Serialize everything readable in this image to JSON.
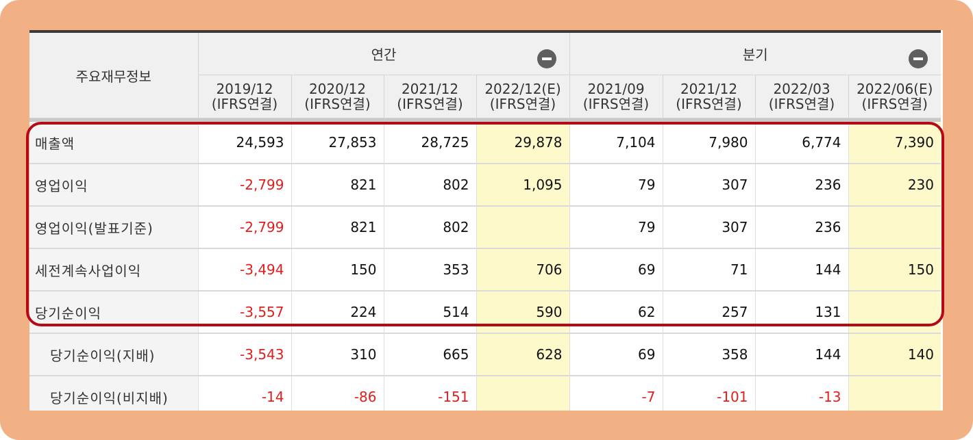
{
  "table": {
    "label_header": "주요재무정보",
    "groups": [
      {
        "label": "연간",
        "toggle_icon": "minus-circle-icon"
      },
      {
        "label": "분기",
        "toggle_icon": "minus-circle-icon"
      }
    ],
    "periods": [
      {
        "date": "2019/12",
        "basis": "(IFRS연결)"
      },
      {
        "date": "2020/12",
        "basis": "(IFRS연결)"
      },
      {
        "date": "2021/12",
        "basis": "(IFRS연결)"
      },
      {
        "date": "2022/12(E)",
        "basis": "(IFRS연결)"
      },
      {
        "date": "2021/09",
        "basis": "(IFRS연결)"
      },
      {
        "date": "2021/12",
        "basis": "(IFRS연결)"
      },
      {
        "date": "2022/03",
        "basis": "(IFRS연결)"
      },
      {
        "date": "2022/06(E)",
        "basis": "(IFRS연결)"
      }
    ],
    "rows": [
      {
        "label": "매출액",
        "values": [
          "24,593",
          "27,853",
          "28,725",
          "29,878",
          "7,104",
          "7,980",
          "6,774",
          "7,390"
        ]
      },
      {
        "label": "영업이익",
        "values": [
          "-2,799",
          "821",
          "802",
          "1,095",
          "79",
          "307",
          "236",
          "230"
        ]
      },
      {
        "label": "영업이익(발표기준)",
        "values": [
          "-2,799",
          "821",
          "802",
          "",
          "79",
          "307",
          "236",
          ""
        ]
      },
      {
        "label": "세전계속사업이익",
        "values": [
          "-3,494",
          "150",
          "353",
          "706",
          "69",
          "71",
          "144",
          "150"
        ]
      },
      {
        "label": "당기순이익",
        "values": [
          "-3,557",
          "224",
          "514",
          "590",
          "62",
          "257",
          "131",
          ""
        ]
      },
      {
        "label": "당기순이익(지배)",
        "values": [
          "-3,543",
          "310",
          "665",
          "628",
          "69",
          "358",
          "144",
          "140"
        ]
      },
      {
        "label": "당기순이익(비지배)",
        "values": [
          "-14",
          "-86",
          "-151",
          "",
          "-7",
          "-101",
          "-13",
          ""
        ]
      }
    ]
  },
  "colors": {
    "frame": "#f2b185",
    "estimate_fill": "#fdf9cb",
    "negative_text": "#e01e1e",
    "highlight_box": "#b30a16"
  }
}
